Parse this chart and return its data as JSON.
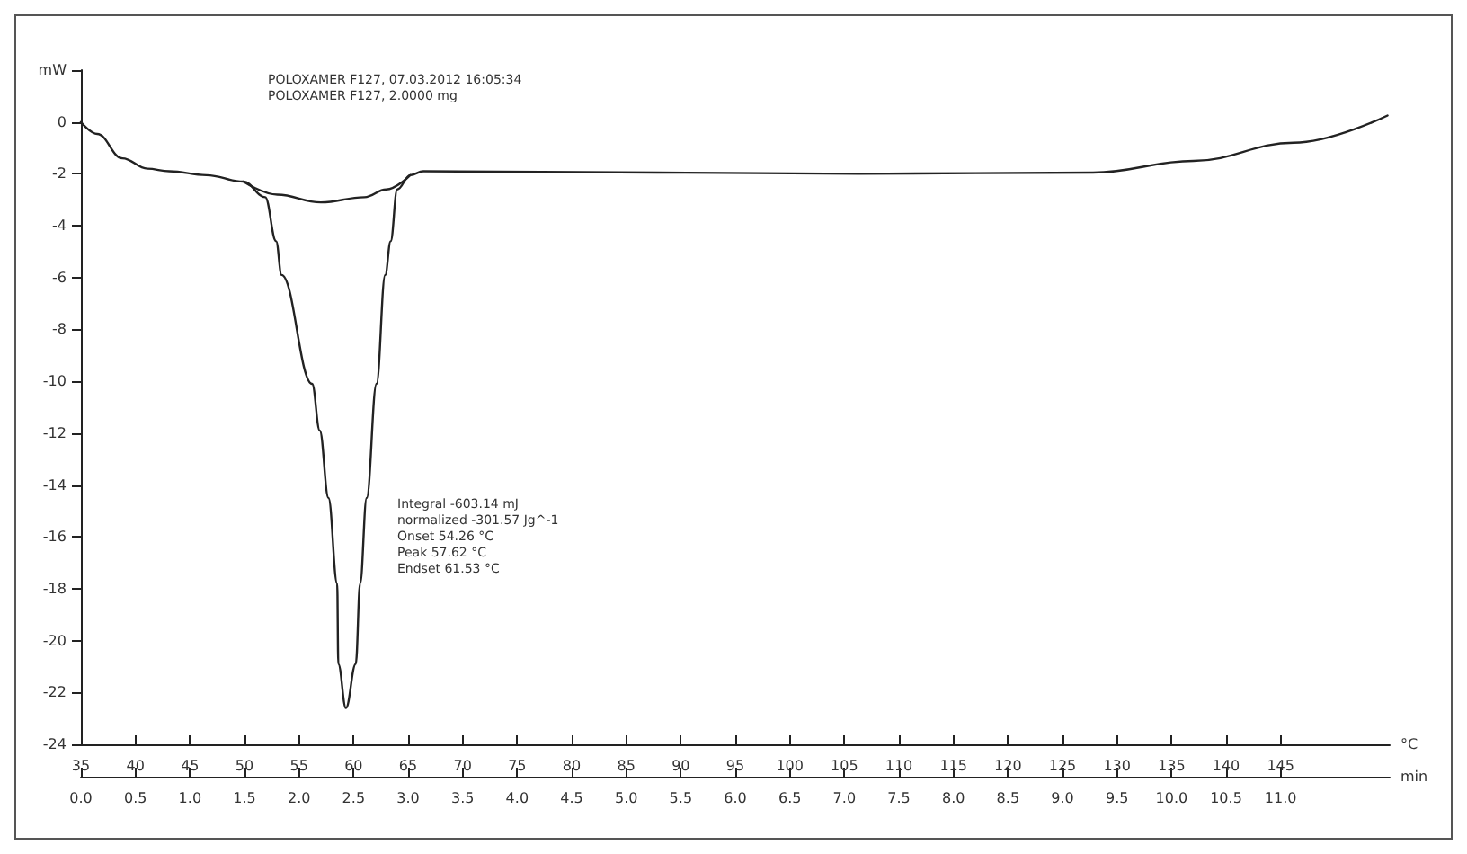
{
  "chart_data": {
    "type": "line",
    "annotations": [
      "POLOXAMER F127, 07.03.2012 16:05:34",
      "POLOXAMER F127, 2.0000 mg",
      "Integral -603.14 mJ",
      "normalized -301.57 Jg^-1",
      "Onset 54.26 °C",
      "Peak 57.62 °C",
      "Endset 61.53 °C"
    ],
    "xlabel": "°C",
    "x2label": "min",
    "series": [
      {
        "color": "#222222",
        "x": [
          35,
          36.5,
          38.8,
          41.1,
          43.1,
          46.5,
          49.9,
          51.9,
          52.9,
          53.4,
          56.2,
          56.9,
          57.7,
          58.5,
          58.6,
          59.3,
          60.2,
          60.6,
          61.2,
          62.1,
          62.9,
          63.4,
          64.0,
          65.2,
          66.4,
          87.9,
          106.3,
          127.8,
          137,
          146.2,
          154.8
        ],
        "values": [
          0,
          -0.46,
          -1.4,
          -1.8,
          -1.9,
          -2.05,
          -2.3,
          -2.9,
          -4.6,
          -5.9,
          -10.1,
          -11.9,
          -14.5,
          -17.8,
          -20.9,
          -22.6,
          -20.9,
          -17.8,
          -14.5,
          -10.1,
          -5.9,
          -4.6,
          -2.6,
          -2.05,
          -1.9,
          -1.95,
          -2.0,
          -1.95,
          -1.5,
          -0.8,
          0.25
        ]
      },
      {
        "color": "#222222",
        "x": [
          49.9,
          53,
          57,
          61,
          63,
          65.2
        ],
        "values": [
          -2.3,
          -2.8,
          -3.1,
          -2.9,
          -2.6,
          -2.05
        ]
      }
    ],
    "xlim": [
      35,
      155
    ],
    "xticks": [
      35,
      40,
      45,
      50,
      55,
      60,
      65,
      70,
      75,
      80,
      85,
      90,
      95,
      100,
      105,
      110,
      115,
      120,
      125,
      130,
      135,
      140,
      145
    ],
    "x2lim": [
      0,
      12
    ],
    "x2ticks": [
      {
        "value": 0,
        "label": "0.0"
      },
      0.5,
      {
        "value": 1,
        "label": "1.0"
      },
      1.5,
      {
        "value": 2,
        "label": "2.0"
      },
      2.5,
      {
        "value": 3,
        "label": "3.0"
      },
      3.5,
      {
        "value": 4,
        "label": "4.0"
      },
      4.5,
      {
        "value": 5,
        "label": "5.0"
      },
      5.5,
      {
        "value": 6,
        "label": "6.0"
      },
      6.5,
      {
        "value": 7,
        "label": "7.0"
      },
      7.5,
      {
        "value": 8,
        "label": "8.0"
      },
      8.5,
      {
        "value": 9,
        "label": "9.0"
      },
      9.5,
      {
        "value": 10,
        "label": "10.0"
      },
      10.5,
      {
        "value": 11,
        "label": "11.0"
      }
    ],
    "ylim": [
      -24,
      2
    ],
    "yticks": [
      -24,
      -22,
      -20,
      -18,
      -16,
      -14,
      -12,
      -10,
      -8,
      -6,
      -4,
      -2,
      0,
      {
        "value": 2,
        "label": "mW"
      }
    ],
    "grid": false,
    "marker": "none",
    "line_style": "solid"
  }
}
